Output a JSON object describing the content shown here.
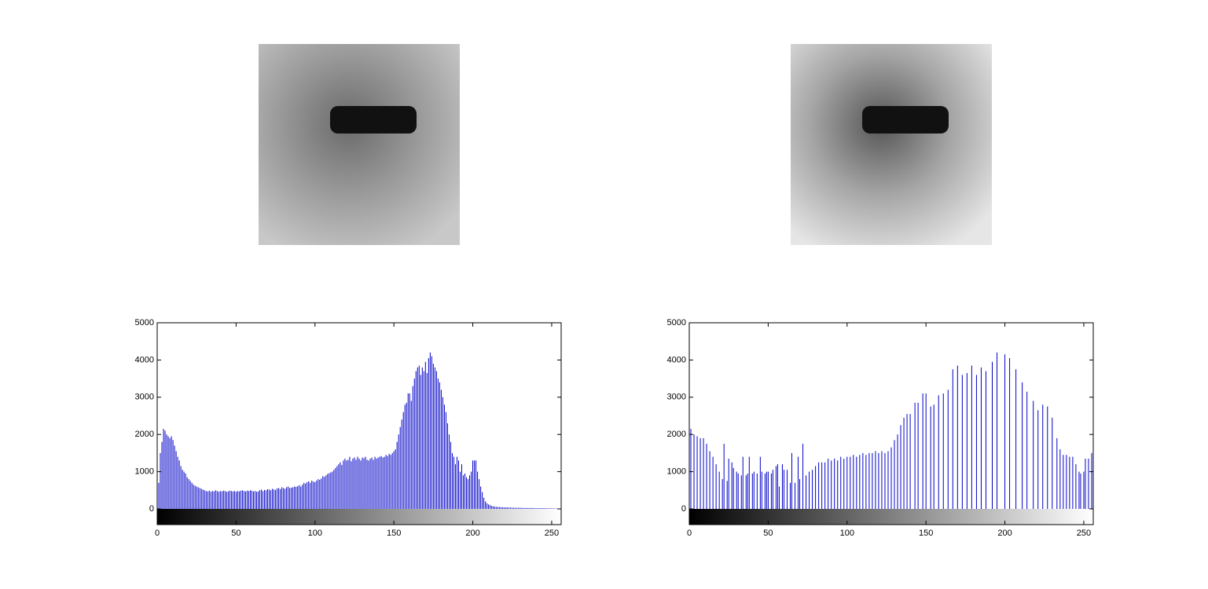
{
  "chart_data": [
    {
      "type": "bar",
      "color": "#0000c8",
      "xlim": [
        0,
        256
      ],
      "ylim": [
        0,
        5000
      ],
      "xticks": [
        0,
        50,
        100,
        150,
        200,
        250
      ],
      "yticks": [
        0,
        1000,
        2000,
        3000,
        4000,
        5000
      ],
      "x": [
        0,
        1,
        2,
        3,
        4,
        5,
        6,
        7,
        8,
        9,
        10,
        11,
        12,
        13,
        14,
        15,
        16,
        17,
        18,
        19,
        20,
        21,
        22,
        23,
        24,
        25,
        26,
        27,
        28,
        29,
        30,
        31,
        32,
        33,
        34,
        35,
        36,
        37,
        38,
        39,
        40,
        41,
        42,
        43,
        44,
        45,
        46,
        47,
        48,
        49,
        50,
        51,
        52,
        53,
        54,
        55,
        56,
        57,
        58,
        59,
        60,
        61,
        62,
        63,
        64,
        65,
        66,
        67,
        68,
        69,
        70,
        71,
        72,
        73,
        74,
        75,
        76,
        77,
        78,
        79,
        80,
        81,
        82,
        83,
        84,
        85,
        86,
        87,
        88,
        89,
        90,
        91,
        92,
        93,
        94,
        95,
        96,
        97,
        98,
        99,
        100,
        101,
        102,
        103,
        104,
        105,
        106,
        107,
        108,
        109,
        110,
        111,
        112,
        113,
        114,
        115,
        116,
        117,
        118,
        119,
        120,
        121,
        122,
        123,
        124,
        125,
        126,
        127,
        128,
        129,
        130,
        131,
        132,
        133,
        134,
        135,
        136,
        137,
        138,
        139,
        140,
        141,
        142,
        143,
        144,
        145,
        146,
        147,
        148,
        149,
        150,
        151,
        152,
        153,
        154,
        155,
        156,
        157,
        158,
        159,
        160,
        161,
        162,
        163,
        164,
        165,
        166,
        167,
        168,
        169,
        170,
        171,
        172,
        173,
        174,
        175,
        176,
        177,
        178,
        179,
        180,
        181,
        182,
        183,
        184,
        185,
        186,
        187,
        188,
        189,
        190,
        191,
        192,
        193,
        194,
        195,
        196,
        197,
        198,
        199,
        200,
        201,
        202,
        203,
        204,
        205,
        206,
        207,
        208,
        209,
        210,
        211,
        212,
        213,
        214,
        215,
        216,
        217,
        218,
        219,
        220,
        221,
        222,
        223,
        224,
        225,
        226,
        227,
        228,
        229,
        230,
        231,
        232,
        233,
        234,
        235,
        236,
        237,
        238,
        239,
        240,
        241,
        242,
        243,
        244,
        245,
        246,
        247,
        248,
        249,
        250,
        251,
        252,
        253,
        254,
        255
      ],
      "values": [
        300,
        700,
        1500,
        1800,
        2150,
        2100,
        2000,
        1950,
        1900,
        1950,
        1850,
        1700,
        1550,
        1400,
        1300,
        1150,
        1050,
        1000,
        950,
        850,
        800,
        750,
        700,
        650,
        620,
        600,
        580,
        560,
        540,
        520,
        500,
        480,
        470,
        490,
        460,
        480,
        470,
        500,
        480,
        460,
        480,
        470,
        490,
        480,
        460,
        470,
        490,
        480,
        470,
        480,
        460,
        480,
        470,
        490,
        500,
        480,
        470,
        490,
        480,
        500,
        490,
        470,
        480,
        460,
        470,
        500,
        520,
        480,
        510,
        500,
        530,
        520,
        500,
        540,
        520,
        510,
        550,
        560,
        530,
        580,
        560,
        540,
        580,
        600,
        560,
        570,
        580,
        600,
        590,
        610,
        640,
        600,
        650,
        700,
        680,
        720,
        740,
        700,
        760,
        730,
        720,
        760,
        800,
        780,
        820,
        880,
        860,
        900,
        940,
        960,
        980,
        1000,
        1050,
        1100,
        1150,
        1200,
        1250,
        1180,
        1300,
        1350,
        1300,
        1320,
        1400,
        1280,
        1350,
        1380,
        1320,
        1400,
        1350,
        1300,
        1380,
        1360,
        1400,
        1320,
        1300,
        1350,
        1380,
        1320,
        1400,
        1350,
        1380,
        1400,
        1420,
        1380,
        1400,
        1450,
        1420,
        1480,
        1450,
        1500,
        1550,
        1600,
        1800,
        2000,
        2200,
        2400,
        2600,
        2800,
        2850,
        3100,
        3100,
        2900,
        3300,
        3500,
        3700,
        3800,
        3850,
        3600,
        3800,
        3700,
        3950,
        3650,
        4050,
        4200,
        4100,
        3900,
        3800,
        3700,
        3500,
        3400,
        3200,
        3000,
        2800,
        2600,
        2300,
        2000,
        1800,
        1500,
        1400,
        1200,
        1400,
        1300,
        1000,
        1200,
        900,
        950,
        850,
        800,
        900,
        1000,
        1300,
        1300,
        1300,
        1000,
        800,
        600,
        450,
        300,
        200,
        150,
        120,
        100,
        80,
        70,
        60,
        55,
        50,
        50,
        45,
        45,
        40,
        40,
        40,
        35,
        35,
        35,
        30,
        30,
        30,
        30,
        30,
        30,
        25,
        25,
        25,
        25,
        25,
        25,
        25,
        20,
        20,
        20,
        20,
        20,
        20,
        20,
        20,
        15,
        15,
        15,
        15,
        15,
        10,
        10,
        10,
        10
      ]
    },
    {
      "type": "bar",
      "color": "#0000c8",
      "xlim": [
        0,
        256
      ],
      "ylim": [
        0,
        5000
      ],
      "xticks": [
        0,
        50,
        100,
        150,
        200,
        250
      ],
      "yticks": [
        0,
        1000,
        2000,
        3000,
        4000,
        5000
      ],
      "x": [
        0,
        1,
        3,
        5,
        7,
        9,
        11,
        13,
        15,
        17,
        19,
        21,
        22,
        24,
        25,
        27,
        28,
        30,
        31,
        33,
        34,
        36,
        37,
        38,
        40,
        41,
        43,
        45,
        46,
        48,
        49,
        50,
        52,
        53,
        55,
        56,
        57,
        59,
        60,
        62,
        64,
        65,
        67,
        69,
        70,
        72,
        74,
        76,
        78,
        80,
        82,
        84,
        86,
        88,
        90,
        92,
        94,
        96,
        98,
        100,
        102,
        104,
        106,
        108,
        110,
        112,
        114,
        116,
        118,
        120,
        122,
        124,
        126,
        128,
        130,
        132,
        134,
        136,
        138,
        140,
        143,
        145,
        148,
        150,
        153,
        155,
        158,
        161,
        164,
        167,
        170,
        173,
        176,
        179,
        182,
        185,
        188,
        192,
        195,
        200,
        203,
        207,
        211,
        214,
        218,
        221,
        224,
        227,
        230,
        233,
        235,
        237,
        239,
        241,
        243,
        245,
        247,
        248,
        250,
        251,
        253,
        255
      ],
      "values": [
        1500,
        2150,
        2000,
        1950,
        1900,
        1900,
        1750,
        1550,
        1400,
        1200,
        1000,
        800,
        1750,
        750,
        1350,
        1250,
        1100,
        1000,
        950,
        900,
        1400,
        900,
        950,
        1400,
        950,
        1000,
        950,
        1400,
        1000,
        950,
        1000,
        1000,
        950,
        1050,
        1150,
        1200,
        600,
        1200,
        1050,
        1050,
        700,
        1500,
        700,
        1400,
        800,
        1750,
        900,
        1000,
        1050,
        1150,
        1250,
        1250,
        1250,
        1350,
        1300,
        1350,
        1300,
        1400,
        1350,
        1400,
        1400,
        1450,
        1400,
        1450,
        1500,
        1450,
        1500,
        1500,
        1550,
        1500,
        1550,
        1500,
        1550,
        1650,
        1850,
        2000,
        2250,
        2450,
        2550,
        2550,
        2850,
        2850,
        3100,
        3100,
        2750,
        2800,
        3050,
        3100,
        3200,
        3750,
        3850,
        3600,
        3650,
        3850,
        3600,
        3800,
        3700,
        3950,
        4200,
        4150,
        4050,
        3750,
        3400,
        3150,
        2900,
        2650,
        2800,
        2750,
        2450,
        1900,
        1600,
        1450,
        1450,
        1400,
        1400,
        1200,
        1000,
        950,
        1000,
        1350,
        1350,
        1500
      ]
    }
  ]
}
